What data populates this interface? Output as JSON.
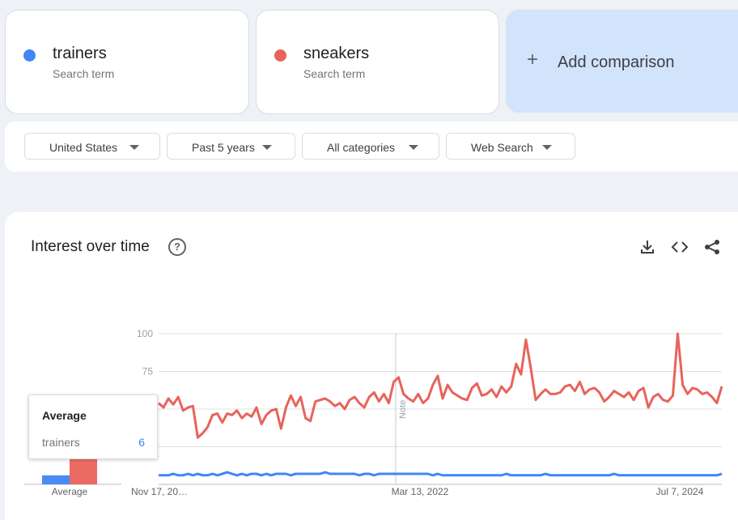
{
  "terms": [
    {
      "name": "trainers",
      "sub": "Search term",
      "color": "#4285f4"
    },
    {
      "name": "sneakers",
      "sub": "Search term",
      "color": "#e8635a"
    }
  ],
  "add_comparison": {
    "label": "Add comparison",
    "icon": "plus-icon"
  },
  "filters": [
    {
      "label": "United States"
    },
    {
      "label": "Past 5 years"
    },
    {
      "label": "All categories"
    },
    {
      "label": "Web Search"
    }
  ],
  "chart": {
    "title": "Interest over time",
    "help_icon": "help-icon",
    "tools": [
      "download-icon",
      "embed-code-icon",
      "share-icon"
    ],
    "average_label": "Average",
    "note_label": "Note"
  },
  "tooltip": {
    "title": "Average",
    "term": "trainers",
    "value": "6"
  },
  "chart_data": {
    "type": "line",
    "yticks": [
      100,
      75,
      50,
      25
    ],
    "ylim": [
      0,
      100
    ],
    "grid": true,
    "x_tick_labels": [
      "Nov 17, 20…",
      "Mar 13, 2022",
      "Jul 7, 2024"
    ],
    "averages": [
      {
        "name": "trainers",
        "value": 6
      },
      {
        "name": "sneakers",
        "value": 56
      }
    ],
    "series": [
      {
        "name": "trainers",
        "color": "#4285f4",
        "values": [
          6,
          6,
          6,
          7,
          6,
          6,
          7,
          6,
          7,
          6,
          6,
          7,
          6,
          7,
          8,
          7,
          6,
          7,
          6,
          7,
          7,
          6,
          7,
          6,
          7,
          7,
          7,
          6,
          7,
          7,
          7,
          7,
          7,
          7,
          8,
          7,
          7,
          7,
          7,
          7,
          7,
          6,
          7,
          7,
          6,
          7,
          7,
          7,
          7,
          7,
          7,
          7,
          7,
          7,
          7,
          7,
          6,
          7,
          6,
          6,
          6,
          6,
          6,
          6,
          6,
          6,
          6,
          6,
          6,
          6,
          6,
          7,
          6,
          6,
          6,
          6,
          6,
          6,
          6,
          7,
          6,
          6,
          6,
          6,
          6,
          6,
          6,
          6,
          6,
          6,
          6,
          6,
          6,
          7,
          6,
          6,
          6,
          6,
          6,
          6,
          6,
          6,
          6,
          6,
          6,
          6,
          6,
          6,
          6,
          6,
          6,
          6,
          6,
          6,
          6,
          7
        ]
      },
      {
        "name": "sneakers",
        "color": "#e8635a",
        "values": [
          54,
          51,
          57,
          53,
          58,
          49,
          51,
          52,
          31,
          34,
          38,
          46,
          47,
          41,
          47,
          46,
          49,
          44,
          47,
          45,
          51,
          40,
          46,
          49,
          50,
          37,
          51,
          59,
          52,
          58,
          44,
          42,
          55,
          56,
          57,
          55,
          52,
          54,
          50,
          56,
          58,
          54,
          51,
          58,
          61,
          55,
          60,
          54,
          68,
          71,
          60,
          57,
          55,
          60,
          54,
          57,
          66,
          72,
          57,
          66,
          61,
          59,
          57,
          56,
          64,
          67,
          59,
          60,
          63,
          58,
          65,
          61,
          65,
          80,
          73,
          96,
          77,
          56,
          60,
          63,
          60,
          60,
          61,
          65,
          66,
          62,
          68,
          60,
          63,
          64,
          61,
          55,
          58,
          62,
          60,
          58,
          61,
          56,
          62,
          64,
          51,
          58,
          60,
          56,
          55,
          59,
          100,
          66,
          60,
          64,
          63,
          60,
          61,
          58,
          54,
          65
        ]
      }
    ]
  }
}
